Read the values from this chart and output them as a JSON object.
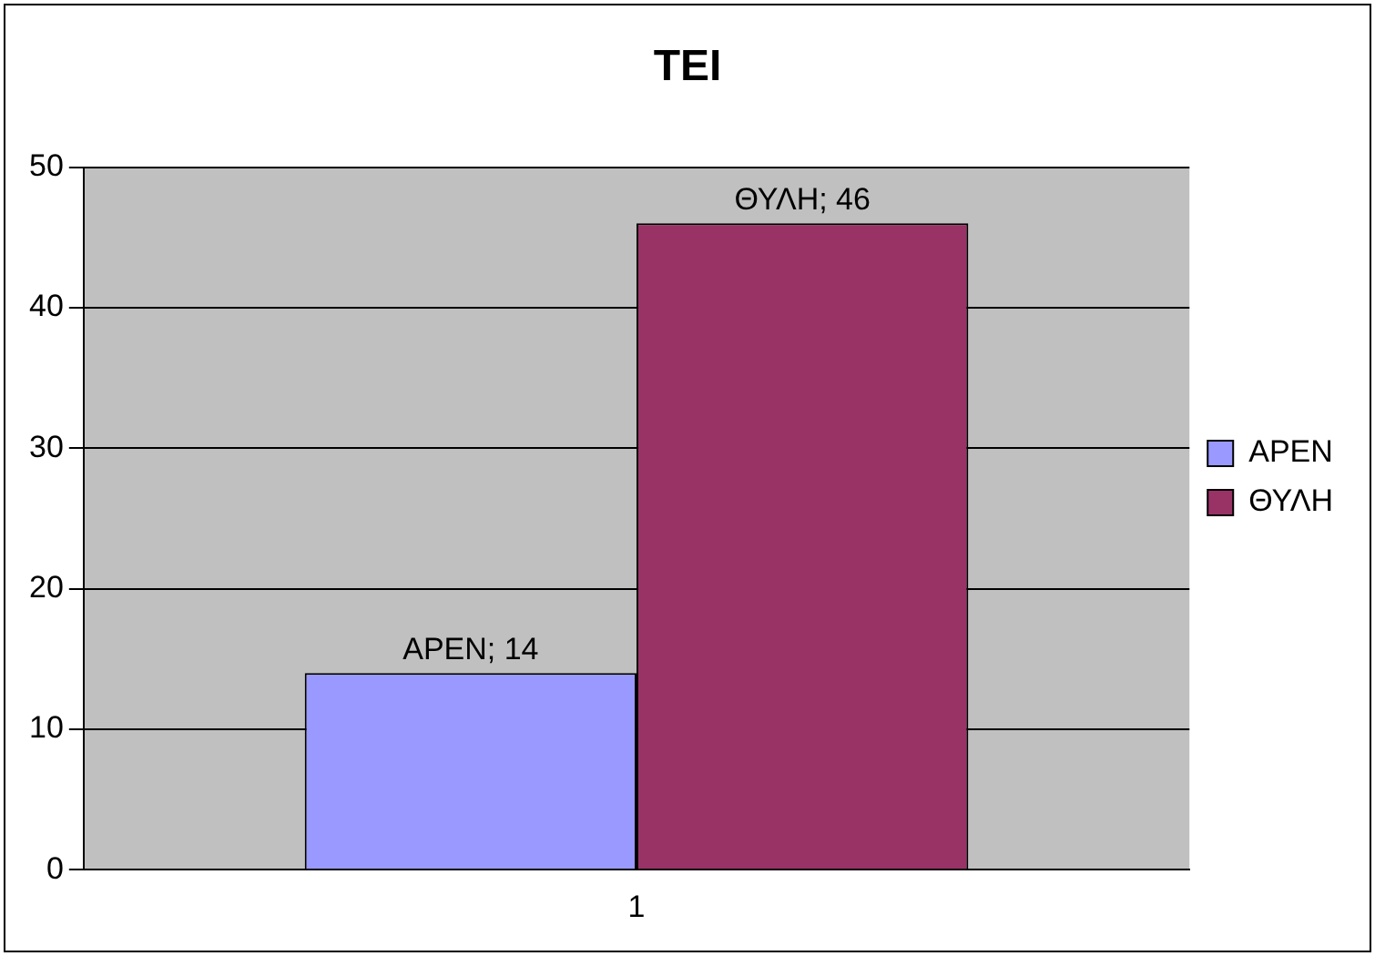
{
  "chart_data": {
    "type": "bar",
    "title": "ΤΕΙ",
    "categories": [
      "1"
    ],
    "series": [
      {
        "name": "ΑΡΕΝ",
        "color": "#9999ff",
        "values": [
          14
        ],
        "value_labels": [
          "ΑΡΕΝ; 14"
        ]
      },
      {
        "name": "ΘΥΛΗ",
        "color": "#993366",
        "values": [
          46
        ],
        "value_labels": [
          "ΘΥΛΗ; 46"
        ]
      }
    ],
    "ylim": [
      0,
      50
    ],
    "yticks": [
      0,
      10,
      20,
      30,
      40,
      50
    ],
    "grid": "y",
    "legend": "right"
  }
}
